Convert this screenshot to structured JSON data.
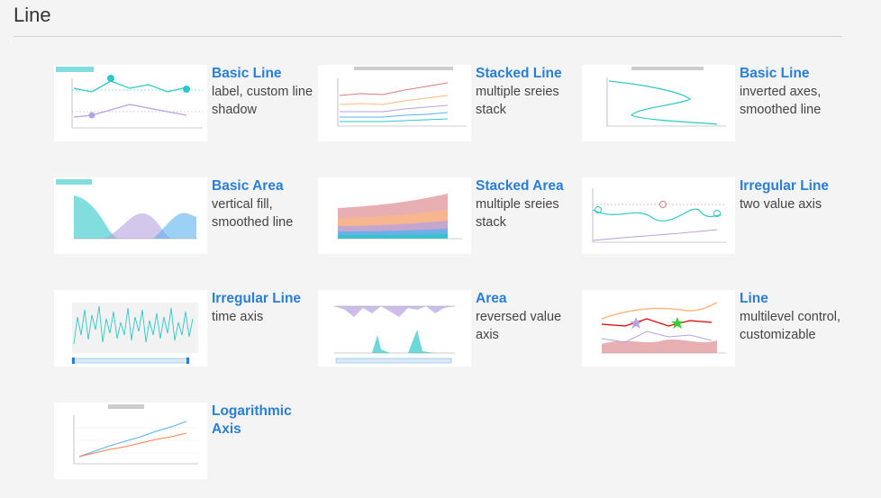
{
  "section": {
    "title": "Line"
  },
  "cards": [
    {
      "title": "Basic Line",
      "desc": "label, custom line shadow",
      "thumb": "thumb-basic-line"
    },
    {
      "title": "Stacked Line",
      "desc": "multiple sreies stack",
      "thumb": "thumb-stacked-line"
    },
    {
      "title": "Basic Line",
      "desc": "inverted axes, smoothed line",
      "thumb": "thumb-inverted-line"
    },
    {
      "title": "Basic Area",
      "desc": "vertical fill, smoothed line",
      "thumb": "thumb-basic-area"
    },
    {
      "title": "Stacked Area",
      "desc": "multiple sreies stack",
      "thumb": "thumb-stacked-area"
    },
    {
      "title": "Irregular Line",
      "desc": "two value axis",
      "thumb": "thumb-irregular-value"
    },
    {
      "title": "Irregular Line",
      "desc": "time axis",
      "thumb": "thumb-irregular-time"
    },
    {
      "title": "Area",
      "desc": "reversed value axis",
      "thumb": "thumb-area-reversed"
    },
    {
      "title": "Line",
      "desc": "multilevel control, customizable",
      "thumb": "thumb-multilevel"
    },
    {
      "title": "Logarithmic Axis",
      "desc": "",
      "thumb": "thumb-log-axis"
    }
  ],
  "colors": {
    "link": "#2a7fd3",
    "teal": "#2ec7c9",
    "purple": "#b6a2de",
    "blue": "#5ab1ef",
    "orange": "#ffb980",
    "red": "#d87a80"
  }
}
